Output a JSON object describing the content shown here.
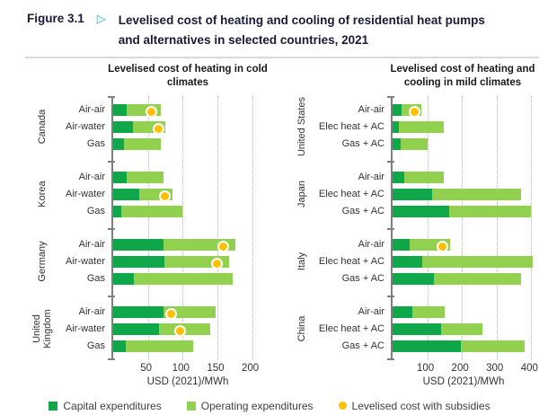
{
  "figure_header": {
    "label": "Figure 3.1",
    "arrow_icon": "▷",
    "title_lines": [
      "Levelised cost of heating and cooling of residential heat pumps",
      "and alternatives in selected countries, 2021"
    ]
  },
  "colors": {
    "capex": "#0fa74a",
    "opex": "#92d050",
    "subsidy": "#ffc000",
    "axis": "#7f7f7f",
    "gridline": "#b8b8b8",
    "header_text": "#1a1a38",
    "arrow": "#35aac6"
  },
  "legend": [
    {
      "name": "capital-expenditures",
      "shape": "square",
      "color": "#0fa74a",
      "label": "Capital expenditures"
    },
    {
      "name": "operating-expenditures",
      "shape": "square",
      "color": "#92d050",
      "label": "Operating expenditures"
    },
    {
      "name": "levelised-cost-with-subsidies",
      "shape": "circle",
      "color": "#ffc000",
      "label": "Levelised cost with subsidies"
    }
  ],
  "chart_data": [
    {
      "type": "bar",
      "orientation": "horizontal",
      "stacked": true,
      "title": "Levelised cost of heating in cold climates",
      "xlabel": "USD (2021)/MWh",
      "xlim": [
        0,
        220
      ],
      "xticks": [
        50,
        100,
        150,
        200
      ],
      "series": [
        "Capital expenditures",
        "Operating expenditures"
      ],
      "marker_series": "Levelised cost with subsidies",
      "groups": [
        {
          "country": "Canada",
          "rows": [
            {
              "label": "Air-air",
              "capex": 20,
              "opex": 48,
              "subsidy": 55
            },
            {
              "label": "Air-water",
              "capex": 29,
              "opex": 46,
              "subsidy": 65
            },
            {
              "label": "Gas",
              "capex": 15,
              "opex": 53,
              "subsidy": null
            }
          ]
        },
        {
          "country": "Korea",
          "rows": [
            {
              "label": "Air-air",
              "capex": 20,
              "opex": 52,
              "subsidy": null
            },
            {
              "label": "Air-water",
              "capex": 37,
              "opex": 49,
              "subsidy": 75
            },
            {
              "label": "Gas",
              "capex": 11,
              "opex": 88,
              "subsidy": null
            }
          ]
        },
        {
          "country": "Germany",
          "rows": [
            {
              "label": "Air-air",
              "capex": 73,
              "opex": 103,
              "subsidy": 158
            },
            {
              "label": "Air-water",
              "capex": 74,
              "opex": 93,
              "subsidy": 149
            },
            {
              "label": "Gas",
              "capex": 30,
              "opex": 142,
              "subsidy": null
            }
          ]
        },
        {
          "country": "United Kingdom",
          "rows": [
            {
              "label": "Air-air",
              "capex": 72,
              "opex": 75,
              "subsidy": 84
            },
            {
              "label": "Air-water",
              "capex": 66,
              "opex": 74,
              "subsidy": 96
            },
            {
              "label": "Gas",
              "capex": 18,
              "opex": 97,
              "subsidy": null
            }
          ]
        }
      ]
    },
    {
      "type": "bar",
      "orientation": "horizontal",
      "stacked": true,
      "title": "Levelised cost of heating and cooling in mild climates",
      "xlabel": "USD (2021)/MWh",
      "xlim": [
        0,
        420
      ],
      "xticks": [
        100,
        200,
        300,
        400
      ],
      "series": [
        "Capital expenditures",
        "Operating expenditures"
      ],
      "marker_series": "Levelised cost with subsidies",
      "groups": [
        {
          "country": "United States",
          "rows": [
            {
              "label": "Air-air",
              "capex": 25,
              "opex": 58,
              "subsidy": 64
            },
            {
              "label": "Elec heat + AC",
              "capex": 19,
              "opex": 129,
              "subsidy": null
            },
            {
              "label": "Gas + AC",
              "capex": 24,
              "opex": 76,
              "subsidy": null
            }
          ]
        },
        {
          "country": "Japan",
          "rows": [
            {
              "label": "Air-air",
              "capex": 33,
              "opex": 115,
              "subsidy": null
            },
            {
              "label": "Elec heat + AC",
              "capex": 115,
              "opex": 255,
              "subsidy": null
            },
            {
              "label": "Gas + AC",
              "capex": 164,
              "opex": 236,
              "subsidy": null
            }
          ]
        },
        {
          "country": "Italy",
          "rows": [
            {
              "label": "Air-air",
              "capex": 48,
              "opex": 117,
              "subsidy": 145
            },
            {
              "label": "Elec heat + AC",
              "capex": 85,
              "opex": 320,
              "subsidy": null
            },
            {
              "label": "Gas + AC",
              "capex": 120,
              "opex": 250,
              "subsidy": null
            }
          ]
        },
        {
          "country": "China",
          "rows": [
            {
              "label": "Air-air",
              "capex": 58,
              "opex": 92,
              "subsidy": null
            },
            {
              "label": "Elec heat + AC",
              "capex": 141,
              "opex": 119,
              "subsidy": null
            },
            {
              "label": "Gas + AC",
              "capex": 198,
              "opex": 182,
              "subsidy": null
            }
          ]
        }
      ]
    }
  ]
}
